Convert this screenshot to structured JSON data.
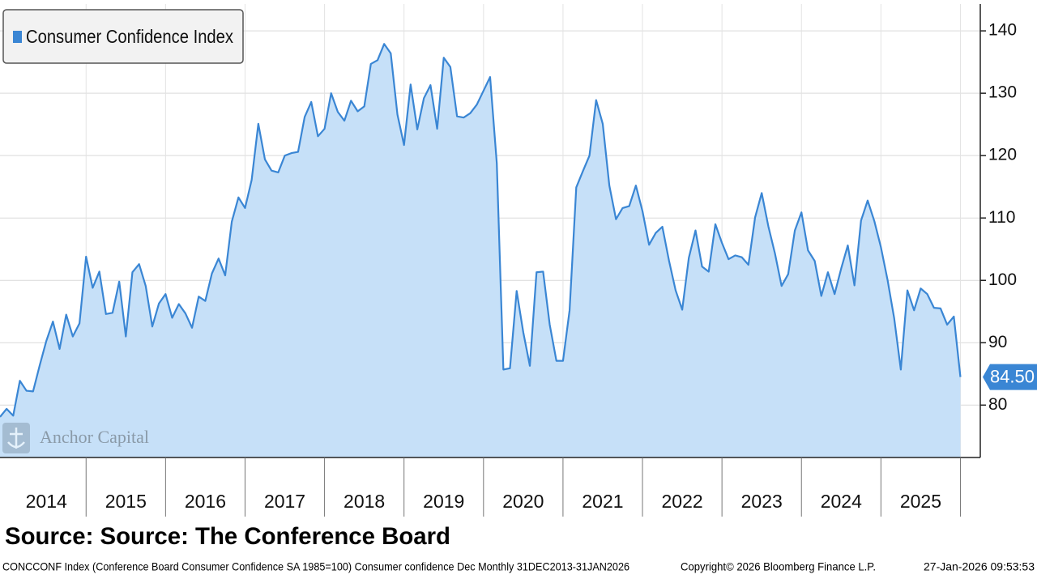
{
  "chart_data": {
    "type": "area",
    "legend": "Consumer Confidence Index",
    "series": [
      {
        "name": "Consumer Confidence Index",
        "color": "#3a86d4",
        "fill": "#c6e0f8",
        "x": [
          2013.917,
          2014,
          2014.083,
          2014.167,
          2014.25,
          2014.333,
          2014.417,
          2014.5,
          2014.583,
          2014.667,
          2014.75,
          2014.833,
          2014.917,
          2015,
          2015.083,
          2015.167,
          2015.25,
          2015.333,
          2015.417,
          2015.5,
          2015.583,
          2015.667,
          2015.75,
          2015.833,
          2015.917,
          2016,
          2016.083,
          2016.167,
          2016.25,
          2016.333,
          2016.417,
          2016.5,
          2016.583,
          2016.667,
          2016.75,
          2016.833,
          2016.917,
          2017,
          2017.083,
          2017.167,
          2017.25,
          2017.333,
          2017.417,
          2017.5,
          2017.583,
          2017.667,
          2017.75,
          2017.833,
          2017.917,
          2018,
          2018.083,
          2018.167,
          2018.25,
          2018.333,
          2018.417,
          2018.5,
          2018.583,
          2018.667,
          2018.75,
          2018.833,
          2018.917,
          2019,
          2019.083,
          2019.167,
          2019.25,
          2019.333,
          2019.417,
          2019.5,
          2019.583,
          2019.667,
          2019.75,
          2019.833,
          2019.917,
          2020,
          2020.083,
          2020.167,
          2020.25,
          2020.333,
          2020.417,
          2020.5,
          2020.583,
          2020.667,
          2020.75,
          2020.833,
          2020.917,
          2021,
          2021.083,
          2021.167,
          2021.25,
          2021.333,
          2021.417,
          2021.5,
          2021.583,
          2021.667,
          2021.75,
          2021.833,
          2021.917,
          2022,
          2022.083,
          2022.167,
          2022.25,
          2022.333,
          2022.417,
          2022.5,
          2022.583,
          2022.667,
          2022.75,
          2022.833,
          2022.917,
          2023,
          2023.083,
          2023.167,
          2023.25,
          2023.333,
          2023.417,
          2023.5,
          2023.583,
          2023.667,
          2023.75,
          2023.833,
          2023.917,
          2024,
          2024.083,
          2024.167,
          2024.25,
          2024.333,
          2024.417,
          2024.5,
          2024.583,
          2024.667,
          2024.75,
          2024.833,
          2024.917,
          2025,
          2025.083,
          2025.167,
          2025.25,
          2025.333,
          2025.417,
          2025.5,
          2025.583,
          2025.667,
          2025.75,
          2025.833,
          2025.917,
          2026
        ],
        "values": [
          78.1,
          79.4,
          78.3,
          83.9,
          82.3,
          82.2,
          86.4,
          90.3,
          93.4,
          89.0,
          94.5,
          91.0,
          93.1,
          103.8,
          98.8,
          101.4,
          94.6,
          94.8,
          99.8,
          91.0,
          101.3,
          102.6,
          99.1,
          92.6,
          96.3,
          97.8,
          94.0,
          96.2,
          94.7,
          92.4,
          97.4,
          96.7,
          101.1,
          103.5,
          100.8,
          109.4,
          113.3,
          111.6,
          116.1,
          125.1,
          119.4,
          117.6,
          117.3,
          120.0,
          120.4,
          120.6,
          126.2,
          128.6,
          123.1,
          124.3,
          130.0,
          127.0,
          125.6,
          128.8,
          127.1,
          127.9,
          134.7,
          135.3,
          137.9,
          136.4,
          126.6,
          121.7,
          131.4,
          124.2,
          129.2,
          131.3,
          124.3,
          135.7,
          134.2,
          126.3,
          126.1,
          126.8,
          128.2,
          130.4,
          132.6,
          118.8,
          85.7,
          85.9,
          98.3,
          91.7,
          86.3,
          101.3,
          101.4,
          92.9,
          87.1,
          87.1,
          95.2,
          114.9,
          117.5,
          120.0,
          128.9,
          125.1,
          115.2,
          109.8,
          111.6,
          111.9,
          115.2,
          111.1,
          105.7,
          107.6,
          108.6,
          103.2,
          98.4,
          95.3,
          103.6,
          108.0,
          102.2,
          101.4,
          109.0,
          106.0,
          103.4,
          104.0,
          103.7,
          102.5,
          110.1,
          114.0,
          108.7,
          104.3,
          99.1,
          101.0,
          108.0,
          110.9,
          104.8,
          103.1,
          97.5,
          101.3,
          97.8,
          101.9,
          105.6,
          99.2,
          109.6,
          112.8,
          109.5,
          105.3,
          100.1,
          93.9,
          85.7,
          98.4,
          95.2,
          98.7,
          97.8,
          95.6,
          95.5,
          92.9,
          94.2,
          84.5
        ],
        "value_labels": [
          null,
          null,
          null,
          null,
          null,
          null,
          null,
          null,
          null,
          null,
          null,
          null,
          null,
          null,
          null,
          null,
          null,
          null,
          null,
          null,
          null,
          null,
          null,
          null,
          null,
          null,
          null,
          null,
          null,
          null,
          null,
          null,
          null,
          null,
          null,
          null,
          null,
          null,
          null,
          null,
          null,
          null,
          null,
          null,
          null,
          null,
          null,
          null,
          null,
          null,
          null,
          null,
          null,
          null,
          null,
          null,
          null,
          null,
          null,
          null,
          null,
          null,
          null,
          null,
          null,
          null,
          null,
          null,
          null,
          null,
          null,
          null,
          null,
          null,
          null,
          null,
          null,
          null,
          null,
          null,
          null,
          null,
          null,
          null,
          null,
          null,
          null,
          null,
          null,
          null,
          null,
          null,
          null,
          null,
          null,
          null,
          null,
          null,
          null,
          null,
          null,
          null,
          null,
          null,
          null,
          null,
          null,
          null,
          null,
          null,
          null,
          null,
          null,
          null,
          null,
          null,
          null,
          null,
          null,
          null,
          null,
          null,
          null,
          null,
          null,
          null,
          null,
          null,
          null,
          null,
          null,
          null,
          null,
          null,
          null,
          null,
          null,
          null,
          null,
          null,
          null,
          null,
          null,
          null,
          null,
          "84.50"
        ]
      }
    ],
    "xlim": [
      2013.917,
      2026.25
    ],
    "xticks": [
      2015,
      2016,
      2017,
      2018,
      2019,
      2020,
      2021,
      2022,
      2023,
      2024,
      2025,
      2026
    ],
    "year_labels": [
      2014,
      2015,
      2016,
      2017,
      2018,
      2019,
      2020,
      2021,
      2022,
      2023,
      2024,
      2025
    ],
    "ylim": [
      71.6,
      144.3
    ],
    "yticks": [
      80,
      90,
      100,
      110,
      120,
      130,
      140
    ],
    "grid": true,
    "watermark": "Anchor Capital",
    "source": "Source: Source: The Conference Board",
    "footer_left": "CONCCONF Index (Conference Board Consumer Confidence SA 1985=100) Consumer confidence Dec Monthly 31DEC2013-31JAN2026",
    "footer_center": "Copyright© 2026 Bloomberg Finance L.P.",
    "footer_right": "27-Jan-2026 09:53:53"
  }
}
